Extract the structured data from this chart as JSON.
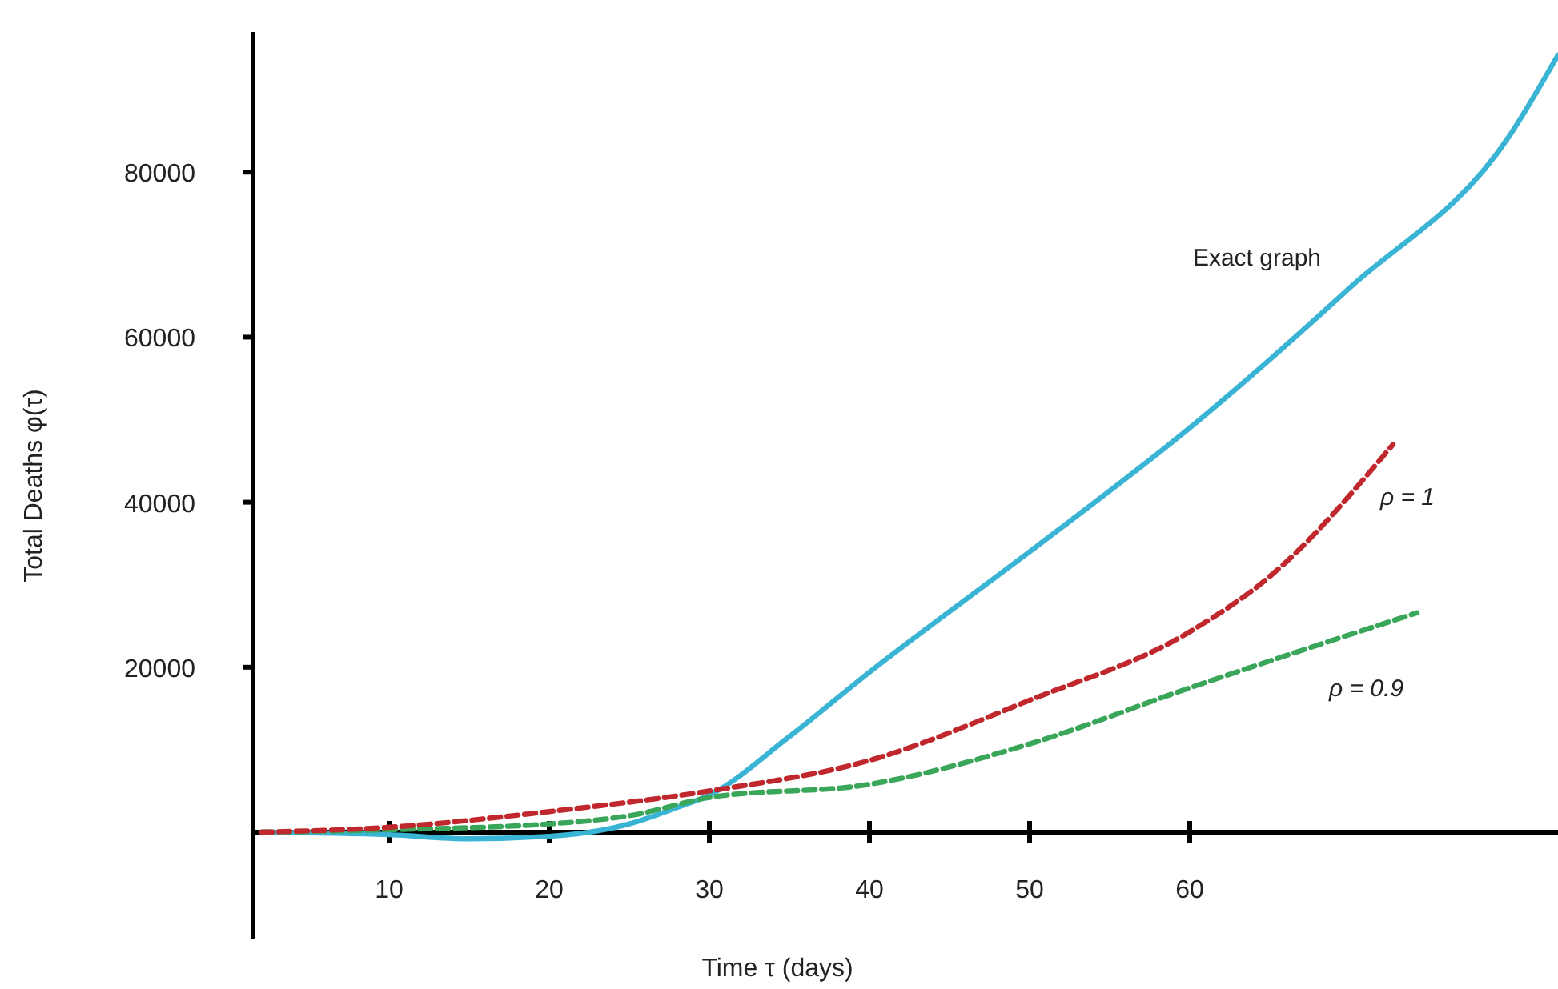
{
  "chart_data": {
    "type": "line",
    "xlabel": "Time τ (days)",
    "ylabel": "Total Deaths φ(τ)",
    "xlim": [
      1.5,
      83
    ],
    "ylim": [
      -13000,
      97000
    ],
    "xticks": [
      10,
      20,
      30,
      40,
      50,
      60
    ],
    "yticks": [
      20000,
      40000,
      60000,
      80000
    ],
    "grid": false,
    "legend": false,
    "series": [
      {
        "name": "Exact graph",
        "color": "#3ab4d4",
        "line_style": "solid",
        "x": [
          2,
          10,
          15,
          20,
          25,
          28,
          30,
          35,
          40,
          50,
          60,
          70,
          80,
          83
        ],
        "values": [
          0,
          -300,
          -800,
          -500,
          1000,
          3000,
          4500,
          11600,
          19400,
          34000,
          49000,
          66000,
          84500,
          94200
        ]
      },
      {
        "name": "ρ = 1",
        "color": "#c0282d",
        "line_style": "dashed",
        "x": [
          2,
          10,
          20,
          30,
          40,
          50,
          60,
          65,
          72.7
        ],
        "values": [
          0,
          600,
          2500,
          5000,
          8700,
          16000,
          24300,
          31000,
          47000
        ]
      },
      {
        "name": "ρ = 0.9",
        "color": "#3aa65a",
        "line_style": "dashed",
        "x": [
          2,
          10,
          20,
          25,
          30,
          40,
          50,
          60,
          74.2
        ],
        "values": [
          0,
          300,
          1000,
          2000,
          4200,
          5800,
          10700,
          17500,
          26600
        ]
      }
    ]
  }
}
